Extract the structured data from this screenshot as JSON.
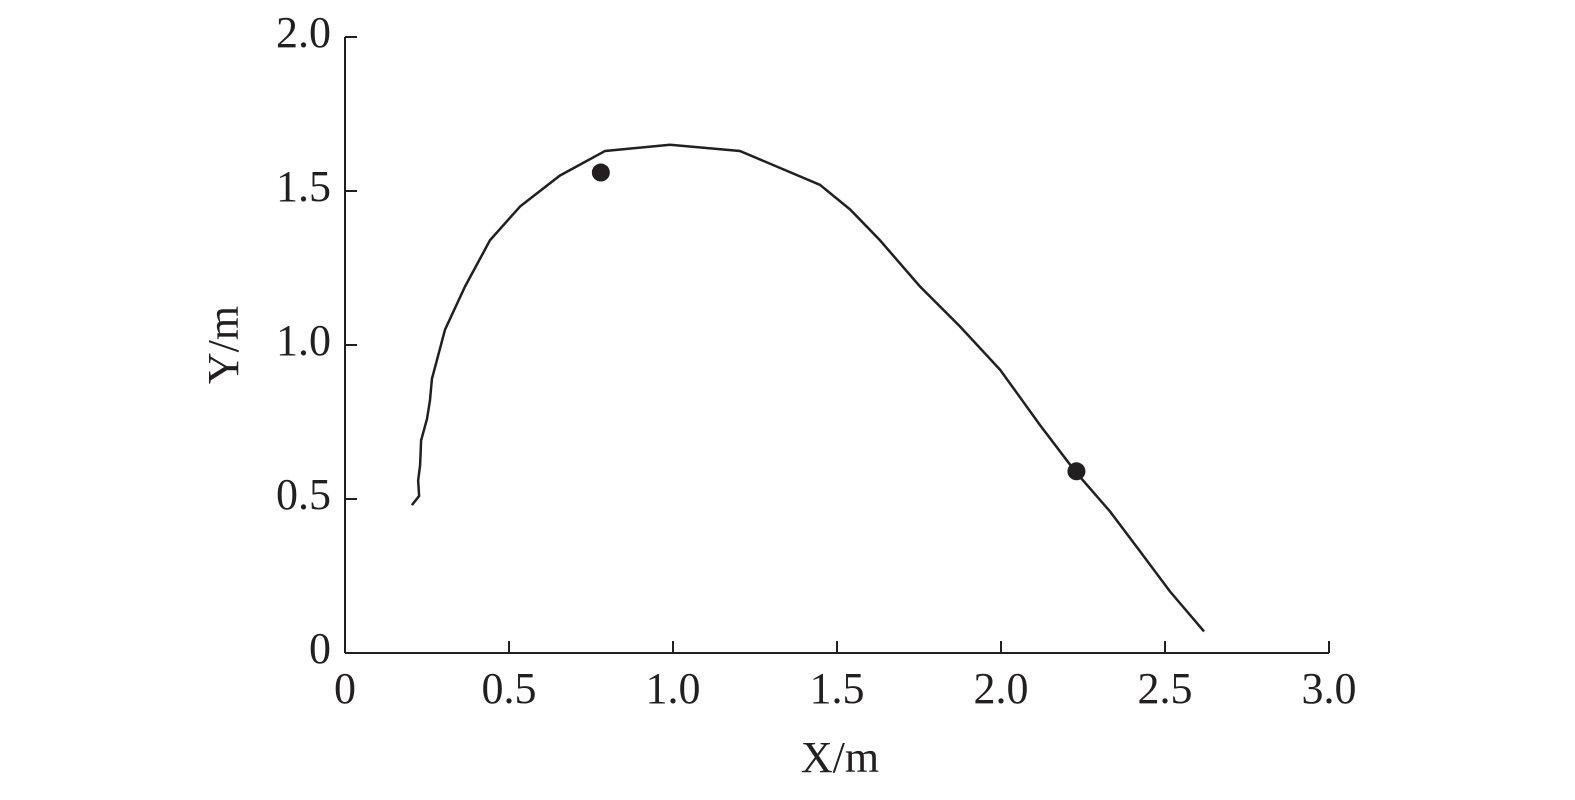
{
  "chart_data": {
    "type": "line",
    "xlabel": "X/m",
    "ylabel": "Y/m",
    "xlim": [
      0,
      3
    ],
    "ylim": [
      0,
      2
    ],
    "xticks": [
      0,
      0.5,
      {
        "value": 1,
        "label": "1.0"
      },
      1.5,
      {
        "value": 2,
        "label": "2.0"
      },
      2.5,
      {
        "value": 3,
        "label": "3.0"
      }
    ],
    "yticks": [
      0,
      0.5,
      {
        "value": 1,
        "label": "1.0"
      },
      1.5,
      {
        "value": 2,
        "label": "2.0"
      }
    ],
    "series": [
      {
        "type": "line",
        "color": "#231f20",
        "x": [
          0.204,
          0.226,
          0.223,
          0.229,
          0.232,
          0.25,
          0.259,
          0.265,
          0.28,
          0.305,
          0.366,
          0.442,
          0.534,
          0.655,
          0.793,
          0.991,
          1.204,
          1.448,
          1.54,
          1.631,
          1.753,
          1.875,
          1.997,
          2.119,
          2.226,
          2.332,
          2.424,
          2.515,
          2.619
        ],
        "values": [
          0.48,
          0.51,
          0.56,
          0.61,
          0.69,
          0.76,
          0.82,
          0.89,
          0.95,
          1.05,
          1.19,
          1.34,
          1.45,
          1.55,
          1.63,
          1.65,
          1.63,
          1.52,
          1.44,
          1.34,
          1.19,
          1.06,
          0.92,
          0.74,
          0.59,
          0.46,
          0.33,
          0.2,
          0.07
        ]
      },
      {
        "type": "scatter",
        "color": "#231f20",
        "x": [
          0.78,
          2.23
        ],
        "values": [
          1.56,
          0.59
        ]
      }
    ]
  }
}
